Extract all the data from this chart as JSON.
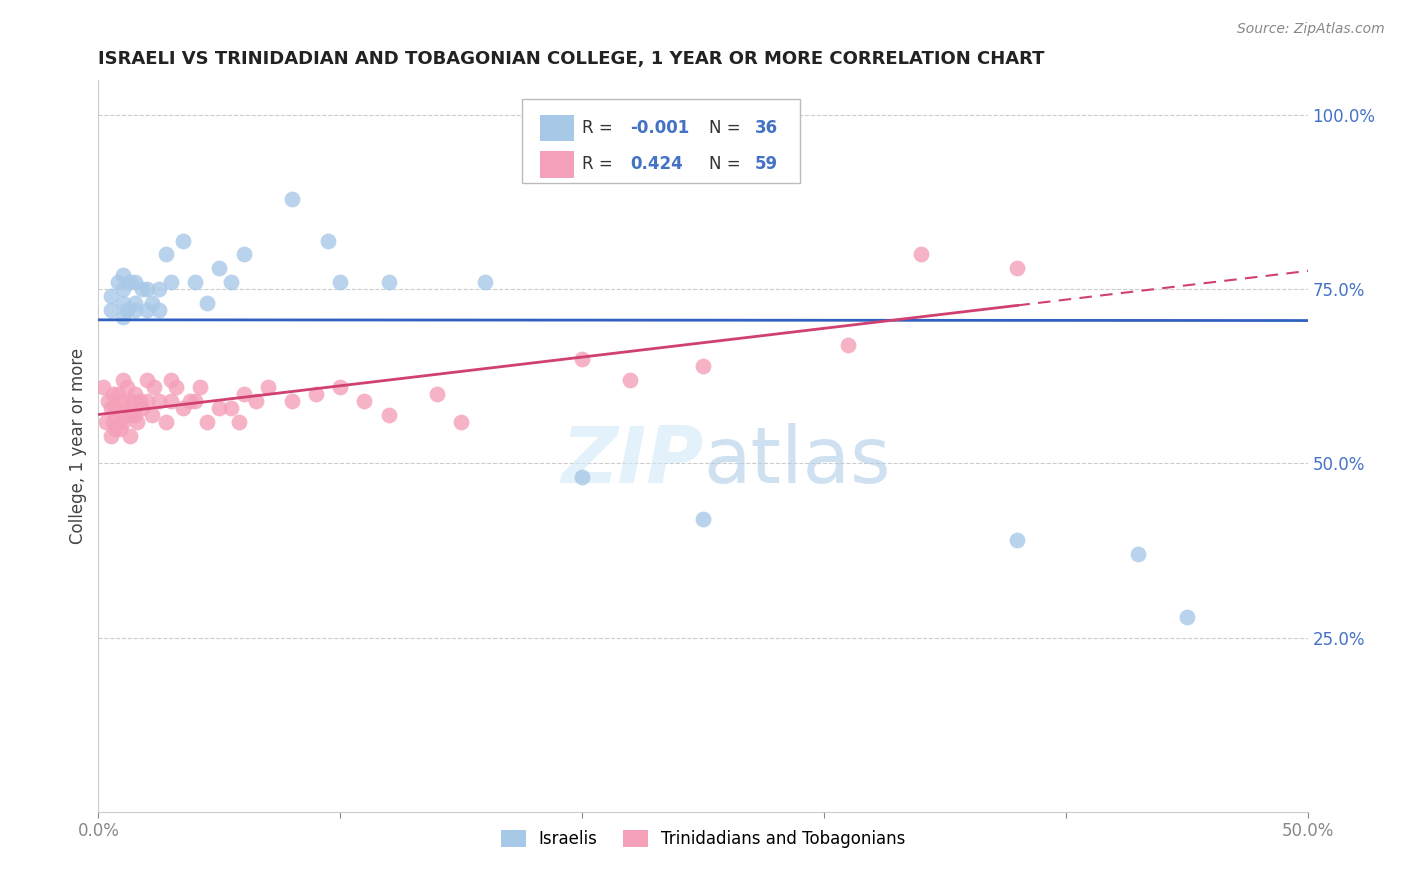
{
  "title": "ISRAELI VS TRINIDADIAN AND TOBAGONIAN COLLEGE, 1 YEAR OR MORE CORRELATION CHART",
  "source": "Source: ZipAtlas.com",
  "ylabel": "College, 1 year or more",
  "xlim": [
    0.0,
    0.5
  ],
  "ylim": [
    0.0,
    1.05
  ],
  "xtick_positions": [
    0.0,
    0.1,
    0.2,
    0.3,
    0.4,
    0.5
  ],
  "xtick_labels": [
    "0.0%",
    "",
    "",
    "",
    "",
    "50.0%"
  ],
  "ytick_positions": [
    0.25,
    0.5,
    0.75,
    1.0
  ],
  "ytick_labels": [
    "25.0%",
    "50.0%",
    "75.0%",
    "100.0%"
  ],
  "r_israeli": -0.001,
  "n_israeli": 36,
  "r_trini": 0.424,
  "n_trini": 59,
  "color_israeli": "#a8c8e8",
  "color_trini": "#f4a0b8",
  "line_color_israeli": "#3060c0",
  "line_color_trini": "#d04070",
  "legend_label_israeli": "Israelis",
  "legend_label_trini": "Trinidadians and Tobagonians",
  "background_color": "#ffffff",
  "grid_color": "#cccccc",
  "israeli_x": [
    0.005,
    0.005,
    0.008,
    0.01,
    0.01,
    0.01,
    0.01,
    0.012,
    0.013,
    0.015,
    0.015,
    0.015,
    0.018,
    0.02,
    0.02,
    0.022,
    0.025,
    0.025,
    0.028,
    0.03,
    0.035,
    0.04,
    0.045,
    0.05,
    0.055,
    0.06,
    0.08,
    0.095,
    0.1,
    0.12,
    0.16,
    0.2,
    0.25,
    0.38,
    0.43,
    0.45
  ],
  "israeli_y": [
    0.72,
    0.74,
    0.76,
    0.71,
    0.73,
    0.75,
    0.77,
    0.72,
    0.76,
    0.72,
    0.73,
    0.76,
    0.75,
    0.72,
    0.75,
    0.73,
    0.72,
    0.75,
    0.8,
    0.76,
    0.82,
    0.76,
    0.73,
    0.78,
    0.76,
    0.8,
    0.88,
    0.82,
    0.76,
    0.76,
    0.76,
    0.48,
    0.42,
    0.39,
    0.37,
    0.28
  ],
  "trini_x": [
    0.002,
    0.003,
    0.004,
    0.005,
    0.005,
    0.006,
    0.006,
    0.007,
    0.007,
    0.008,
    0.008,
    0.009,
    0.01,
    0.01,
    0.01,
    0.011,
    0.012,
    0.012,
    0.013,
    0.013,
    0.014,
    0.015,
    0.015,
    0.016,
    0.017,
    0.018,
    0.02,
    0.02,
    0.022,
    0.023,
    0.025,
    0.028,
    0.03,
    0.03,
    0.032,
    0.035,
    0.038,
    0.04,
    0.042,
    0.045,
    0.05,
    0.055,
    0.058,
    0.06,
    0.065,
    0.07,
    0.08,
    0.09,
    0.1,
    0.11,
    0.12,
    0.14,
    0.15,
    0.2,
    0.22,
    0.25,
    0.31,
    0.34,
    0.38
  ],
  "trini_y": [
    0.61,
    0.56,
    0.59,
    0.54,
    0.58,
    0.56,
    0.6,
    0.55,
    0.58,
    0.56,
    0.6,
    0.55,
    0.56,
    0.59,
    0.62,
    0.57,
    0.58,
    0.61,
    0.54,
    0.57,
    0.59,
    0.57,
    0.6,
    0.56,
    0.59,
    0.58,
    0.59,
    0.62,
    0.57,
    0.61,
    0.59,
    0.56,
    0.59,
    0.62,
    0.61,
    0.58,
    0.59,
    0.59,
    0.61,
    0.56,
    0.58,
    0.58,
    0.56,
    0.6,
    0.59,
    0.61,
    0.59,
    0.6,
    0.61,
    0.59,
    0.57,
    0.6,
    0.56,
    0.65,
    0.62,
    0.64,
    0.67,
    0.8,
    0.78
  ]
}
